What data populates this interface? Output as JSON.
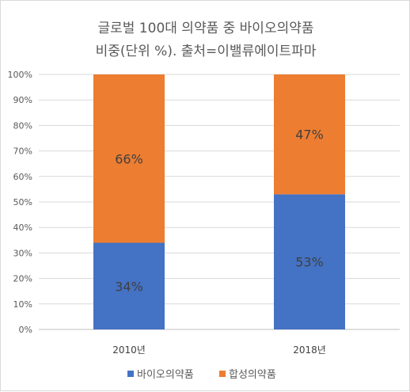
{
  "chart_data": {
    "type": "bar",
    "stacked": true,
    "title_lines": [
      "글로벌 100대 의약품 중 바이오의약품",
      "비중(단위 %). 출처=이밸류에이트파마"
    ],
    "categories": [
      "2010년",
      "2018년"
    ],
    "series": [
      {
        "name": "바이오의약품",
        "values": [
          34,
          53
        ],
        "labels": [
          "34%",
          "53%"
        ],
        "color": "#4472c4"
      },
      {
        "name": "합성의약품",
        "values": [
          66,
          47
        ],
        "labels": [
          "66%",
          "47%"
        ],
        "color": "#ed7d31"
      }
    ],
    "ylim": [
      0,
      100
    ],
    "yticks": [
      "0%",
      "10%",
      "20%",
      "30%",
      "40%",
      "50%",
      "60%",
      "70%",
      "80%",
      "90%",
      "100%"
    ],
    "grid": true,
    "legend_position": "bottom"
  }
}
